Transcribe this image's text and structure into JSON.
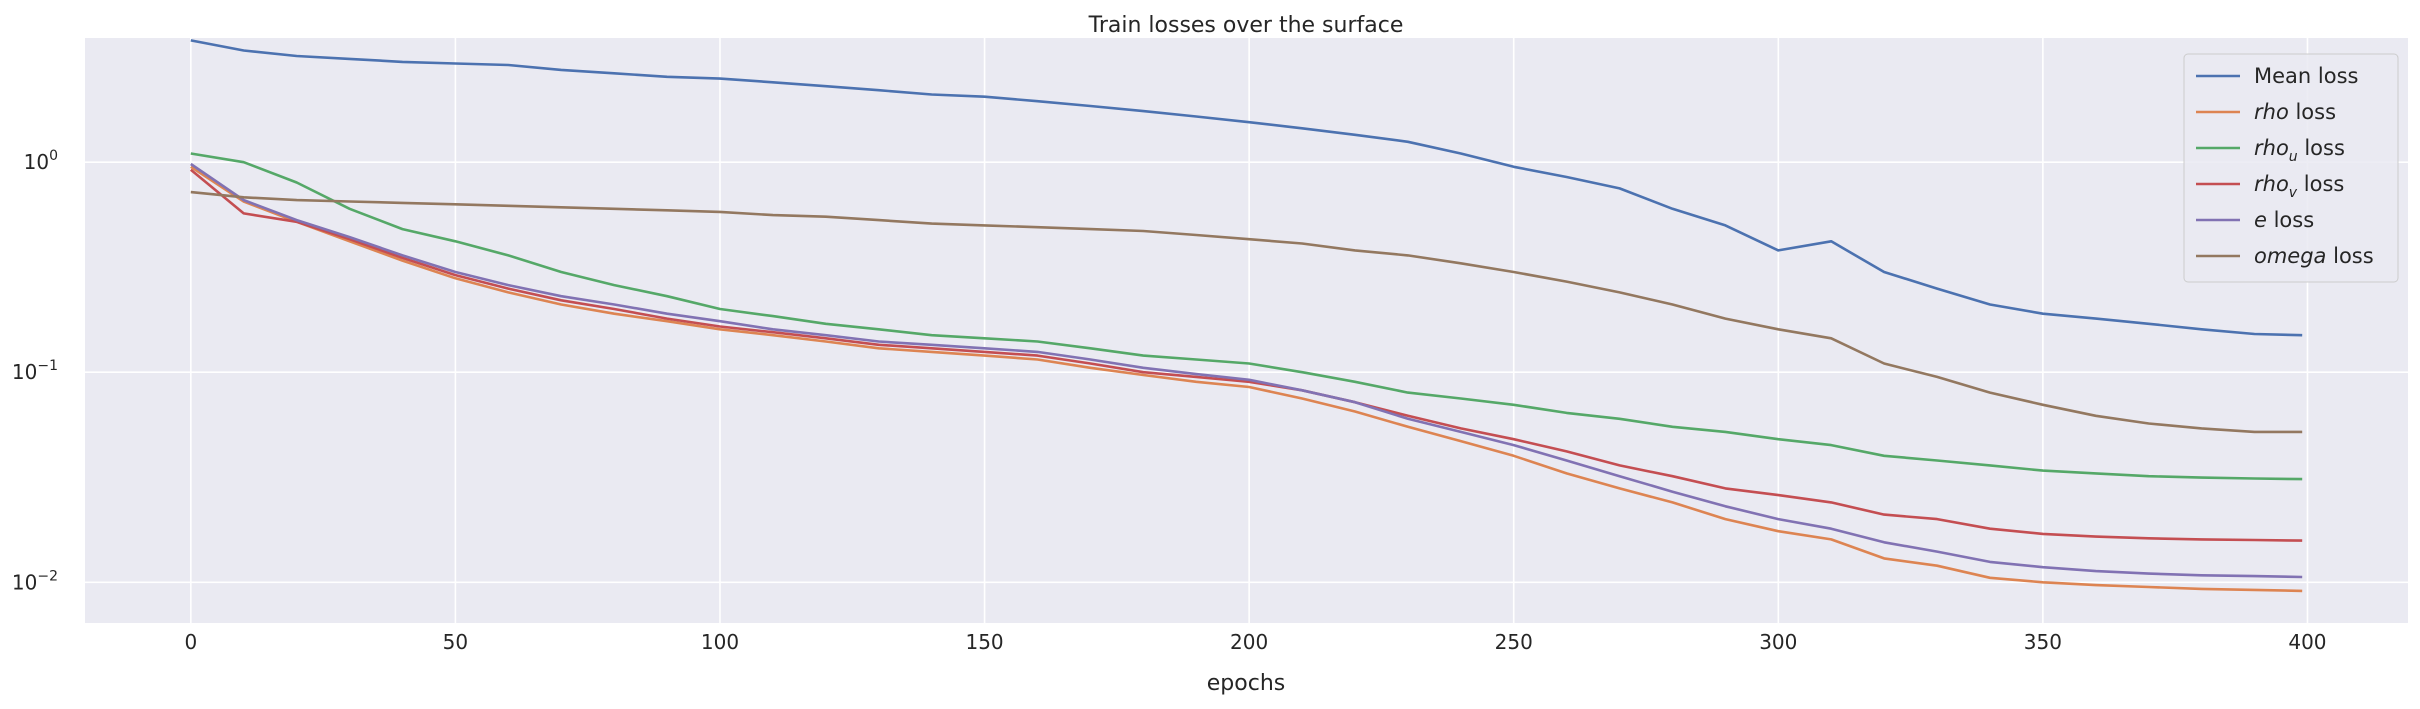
{
  "chart_data": {
    "type": "line",
    "title": "Train losses over the surface",
    "xlabel": "epochs",
    "ylabel": "",
    "xlim": [
      -20,
      419
    ],
    "ylim": [
      0.0064,
      3.9
    ],
    "yscale": "log",
    "grid": true,
    "legend_position": "top-right",
    "xticks": [
      0,
      50,
      100,
      150,
      200,
      250,
      300,
      350,
      400
    ],
    "yticks": [
      {
        "value": 1,
        "base": "10",
        "exp": "0"
      },
      {
        "value": 0.1,
        "base": "10",
        "exp": "−1"
      },
      {
        "value": 0.01,
        "base": "10",
        "exp": "−2"
      }
    ],
    "x": [
      0,
      10,
      20,
      30,
      40,
      50,
      60,
      70,
      80,
      90,
      100,
      110,
      120,
      130,
      140,
      150,
      160,
      170,
      180,
      190,
      200,
      210,
      220,
      230,
      240,
      250,
      260,
      270,
      280,
      290,
      300,
      310,
      320,
      330,
      340,
      350,
      360,
      370,
      380,
      390,
      399
    ],
    "series": [
      {
        "name_main": "Mean loss",
        "name_sub": "",
        "name_style": "normal",
        "color": "#4c72b0",
        "values": [
          3.8,
          3.4,
          3.2,
          3.1,
          3.0,
          2.95,
          2.9,
          2.75,
          2.65,
          2.55,
          2.5,
          2.4,
          2.3,
          2.2,
          2.1,
          2.05,
          1.95,
          1.85,
          1.75,
          1.65,
          1.55,
          1.45,
          1.35,
          1.25,
          1.1,
          0.95,
          0.85,
          0.75,
          0.6,
          0.5,
          0.38,
          0.42,
          0.3,
          0.25,
          0.21,
          0.19,
          0.18,
          0.17,
          0.16,
          0.152,
          0.15
        ]
      },
      {
        "name_main": "rho",
        "name_sub": "",
        "name_style": "italic",
        "color": "#dd8452",
        "values": [
          0.95,
          0.65,
          0.52,
          0.42,
          0.34,
          0.28,
          0.24,
          0.21,
          0.19,
          0.175,
          0.16,
          0.15,
          0.14,
          0.13,
          0.125,
          0.12,
          0.115,
          0.105,
          0.097,
          0.09,
          0.085,
          0.075,
          0.065,
          0.055,
          0.047,
          0.04,
          0.033,
          0.028,
          0.024,
          0.02,
          0.0175,
          0.016,
          0.013,
          0.012,
          0.0105,
          0.01,
          0.0097,
          0.0095,
          0.0093,
          0.0092,
          0.0091
        ]
      },
      {
        "name_main": "rho",
        "name_sub": "u",
        "name_style": "italic",
        "color": "#55a868",
        "values": [
          1.1,
          1.0,
          0.8,
          0.6,
          0.48,
          0.42,
          0.36,
          0.3,
          0.26,
          0.23,
          0.2,
          0.185,
          0.17,
          0.16,
          0.15,
          0.145,
          0.14,
          0.13,
          0.12,
          0.115,
          0.11,
          0.1,
          0.09,
          0.08,
          0.075,
          0.07,
          0.064,
          0.06,
          0.055,
          0.052,
          0.048,
          0.045,
          0.04,
          0.038,
          0.036,
          0.034,
          0.033,
          0.032,
          0.0315,
          0.0312,
          0.031
        ]
      },
      {
        "name_main": "rho",
        "name_sub": "v",
        "name_style": "italic",
        "color": "#c44e52",
        "values": [
          0.92,
          0.57,
          0.52,
          0.43,
          0.35,
          0.29,
          0.25,
          0.22,
          0.2,
          0.18,
          0.165,
          0.155,
          0.145,
          0.135,
          0.13,
          0.125,
          0.12,
          0.11,
          0.1,
          0.095,
          0.09,
          0.082,
          0.072,
          0.062,
          0.054,
          0.048,
          0.042,
          0.036,
          0.032,
          0.028,
          0.026,
          0.024,
          0.021,
          0.02,
          0.018,
          0.017,
          0.0165,
          0.0162,
          0.016,
          0.0159,
          0.0158
        ]
      },
      {
        "name_main": "e",
        "name_sub": "",
        "name_style": "italic",
        "color": "#8172b3",
        "values": [
          0.98,
          0.66,
          0.53,
          0.44,
          0.36,
          0.3,
          0.26,
          0.23,
          0.21,
          0.19,
          0.175,
          0.16,
          0.15,
          0.14,
          0.135,
          0.13,
          0.125,
          0.115,
          0.105,
          0.098,
          0.092,
          0.082,
          0.072,
          0.06,
          0.052,
          0.045,
          0.038,
          0.032,
          0.027,
          0.023,
          0.02,
          0.018,
          0.0155,
          0.014,
          0.0125,
          0.0118,
          0.0113,
          0.011,
          0.0108,
          0.0107,
          0.0106
        ]
      },
      {
        "name_main": "omega",
        "name_sub": "",
        "name_style": "italic",
        "color": "#937860",
        "values": [
          0.72,
          0.68,
          0.66,
          0.65,
          0.64,
          0.63,
          0.62,
          0.61,
          0.6,
          0.59,
          0.58,
          0.56,
          0.55,
          0.53,
          0.51,
          0.5,
          0.49,
          0.48,
          0.47,
          0.45,
          0.43,
          0.41,
          0.38,
          0.36,
          0.33,
          0.3,
          0.27,
          0.24,
          0.21,
          0.18,
          0.16,
          0.145,
          0.11,
          0.095,
          0.08,
          0.07,
          0.062,
          0.057,
          0.054,
          0.052,
          0.052
        ]
      }
    ]
  }
}
